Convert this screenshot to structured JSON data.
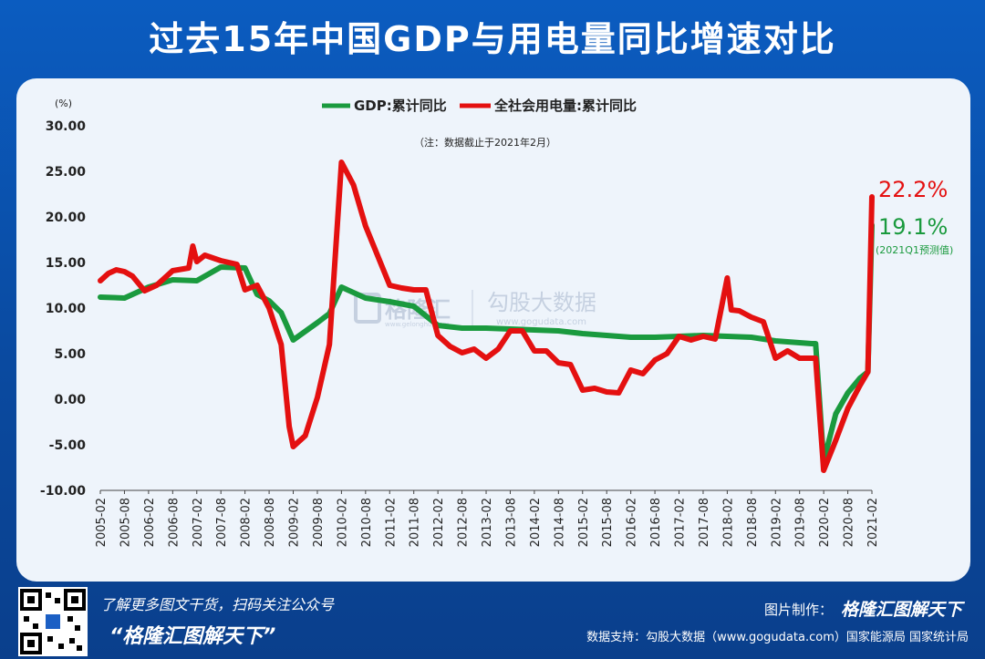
{
  "title": "过去15年中国GDP与用电量同比增速对比",
  "colors": {
    "gdp": "#1a9a3e",
    "power": "#e41010",
    "axis_text": "#222222",
    "page_bg": "#0a4fa8",
    "panel_bg": "#eef4fb"
  },
  "watermark": {
    "brand": "格隆汇",
    "brand_sub": "www.gelonghui.com",
    "partner": "勾股大数据",
    "partner_sub": "www.gogudata.com"
  },
  "chart_data": {
    "type": "line",
    "title": "过去15年中国GDP与用电量同比增速对比",
    "note": "（注：数据截止于2021年2月）",
    "ylabel": "(%)",
    "xlabel": "",
    "ylim": [
      -10,
      30
    ],
    "yticks": [
      "30.00",
      "25.00",
      "20.00",
      "15.00",
      "10.00",
      "5.00",
      "0.00",
      "-5.00",
      "-10.00"
    ],
    "xlim": [
      2005.083,
      2021.083
    ],
    "xticks": [
      "2005-02",
      "2005-08",
      "2006-02",
      "2006-08",
      "2007-02",
      "2007-08",
      "2008-02",
      "2008-08",
      "2009-02",
      "2009-08",
      "2010-02",
      "2010-08",
      "2011-02",
      "2011-08",
      "2012-02",
      "2012-08",
      "2013-02",
      "2013-08",
      "2014-02",
      "2014-08",
      "2015-02",
      "2015-08",
      "2016-02",
      "2016-08",
      "2017-02",
      "2017-08",
      "2018-02",
      "2018-08",
      "2019-02",
      "2019-08",
      "2020-02",
      "2020-08",
      "2021-02"
    ],
    "grid": false,
    "legend_position": "top-center",
    "series": [
      {
        "name": "GDP:累计同比",
        "color": "#1a9a3e",
        "points": [
          [
            "2005-02",
            11.2
          ],
          [
            "2005-08",
            11.1
          ],
          [
            "2006-02",
            12.3
          ],
          [
            "2006-08",
            13.1
          ],
          [
            "2007-02",
            13.0
          ],
          [
            "2007-08",
            14.5
          ],
          [
            "2008-02",
            14.4
          ],
          [
            "2008-05",
            11.5
          ],
          [
            "2008-08",
            10.8
          ],
          [
            "2008-11",
            9.5
          ],
          [
            "2009-02",
            6.5
          ],
          [
            "2009-08",
            8.4
          ],
          [
            "2009-11",
            9.4
          ],
          [
            "2010-02",
            12.3
          ],
          [
            "2010-08",
            11.1
          ],
          [
            "2011-02",
            10.7
          ],
          [
            "2011-08",
            10.2
          ],
          [
            "2012-02",
            8.1
          ],
          [
            "2012-08",
            7.8
          ],
          [
            "2013-02",
            7.8
          ],
          [
            "2013-08",
            7.7
          ],
          [
            "2014-02",
            7.6
          ],
          [
            "2014-08",
            7.5
          ],
          [
            "2015-02",
            7.2
          ],
          [
            "2015-08",
            7.0
          ],
          [
            "2016-02",
            6.8
          ],
          [
            "2016-08",
            6.8
          ],
          [
            "2017-02",
            6.9
          ],
          [
            "2017-08",
            7.0
          ],
          [
            "2018-02",
            6.9
          ],
          [
            "2018-08",
            6.8
          ],
          [
            "2019-02",
            6.4
          ],
          [
            "2019-08",
            6.2
          ],
          [
            "2019-11",
            6.1
          ],
          [
            "2019-12",
            6.1
          ],
          [
            "2020-02",
            -6.8
          ],
          [
            "2020-05",
            -1.6
          ],
          [
            "2020-08",
            0.7
          ],
          [
            "2020-11",
            2.3
          ],
          [
            "2021-01",
            3.0
          ],
          [
            "2021-02",
            19.1
          ]
        ]
      },
      {
        "name": "全社会用电量:累计同比",
        "color": "#e41010",
        "points": [
          [
            "2005-02",
            13.0
          ],
          [
            "2005-04",
            13.8
          ],
          [
            "2005-06",
            14.2
          ],
          [
            "2005-08",
            14.0
          ],
          [
            "2005-10",
            13.5
          ],
          [
            "2006-01",
            11.9
          ],
          [
            "2006-04",
            12.5
          ],
          [
            "2006-08",
            14.1
          ],
          [
            "2006-12",
            14.4
          ],
          [
            "2007-01",
            16.8
          ],
          [
            "2007-02",
            15.1
          ],
          [
            "2007-04",
            15.8
          ],
          [
            "2007-08",
            15.2
          ],
          [
            "2007-12",
            14.8
          ],
          [
            "2008-02",
            12.0
          ],
          [
            "2008-05",
            12.5
          ],
          [
            "2008-08",
            10.0
          ],
          [
            "2008-11",
            6.0
          ],
          [
            "2009-01",
            -3.0
          ],
          [
            "2009-02",
            -5.2
          ],
          [
            "2009-05",
            -4.0
          ],
          [
            "2009-08",
            0.2
          ],
          [
            "2009-11",
            6.0
          ],
          [
            "2010-02",
            26.0
          ],
          [
            "2010-05",
            23.5
          ],
          [
            "2010-08",
            19.0
          ],
          [
            "2011-02",
            12.5
          ],
          [
            "2011-05",
            12.2
          ],
          [
            "2011-08",
            12.0
          ],
          [
            "2011-11",
            12.0
          ],
          [
            "2012-02",
            7.0
          ],
          [
            "2012-05",
            5.8
          ],
          [
            "2012-08",
            5.1
          ],
          [
            "2012-11",
            5.5
          ],
          [
            "2013-02",
            4.5
          ],
          [
            "2013-05",
            5.5
          ],
          [
            "2013-08",
            7.5
          ],
          [
            "2013-11",
            7.5
          ],
          [
            "2014-02",
            5.3
          ],
          [
            "2014-05",
            5.3
          ],
          [
            "2014-08",
            4.0
          ],
          [
            "2014-11",
            3.8
          ],
          [
            "2015-02",
            1.0
          ],
          [
            "2015-05",
            1.2
          ],
          [
            "2015-08",
            0.8
          ],
          [
            "2015-11",
            0.7
          ],
          [
            "2016-02",
            3.2
          ],
          [
            "2016-05",
            2.8
          ],
          [
            "2016-08",
            4.3
          ],
          [
            "2016-11",
            5.0
          ],
          [
            "2017-02",
            6.9
          ],
          [
            "2017-05",
            6.5
          ],
          [
            "2017-08",
            6.9
          ],
          [
            "2017-11",
            6.6
          ],
          [
            "2018-02",
            13.3
          ],
          [
            "2018-03",
            9.8
          ],
          [
            "2018-05",
            9.7
          ],
          [
            "2018-08",
            9.0
          ],
          [
            "2018-11",
            8.5
          ],
          [
            "2019-02",
            4.5
          ],
          [
            "2019-05",
            5.3
          ],
          [
            "2019-08",
            4.5
          ],
          [
            "2019-11",
            4.5
          ],
          [
            "2019-12",
            4.5
          ],
          [
            "2020-02",
            -7.8
          ],
          [
            "2020-05",
            -4.5
          ],
          [
            "2020-08",
            -1.0
          ],
          [
            "2020-11",
            1.5
          ],
          [
            "2021-01",
            3.0
          ],
          [
            "2021-02",
            22.2
          ]
        ]
      }
    ],
    "annotations": [
      {
        "text": "22.2%",
        "series": "全社会用电量:累计同比"
      },
      {
        "text": "19.1%",
        "series": "GDP:累计同比"
      },
      {
        "text": "(2021Q1预测值)"
      }
    ]
  },
  "footer": {
    "follow_text": "了解更多图文干货，扫码关注公众号",
    "account": "“格隆汇图解天下”",
    "credit_label": "图片制作：",
    "credit_brand": "格隆汇图解天下",
    "source": "数据支持：勾股大数据（www.gogudata.com）国家能源局  国家统计局"
  }
}
